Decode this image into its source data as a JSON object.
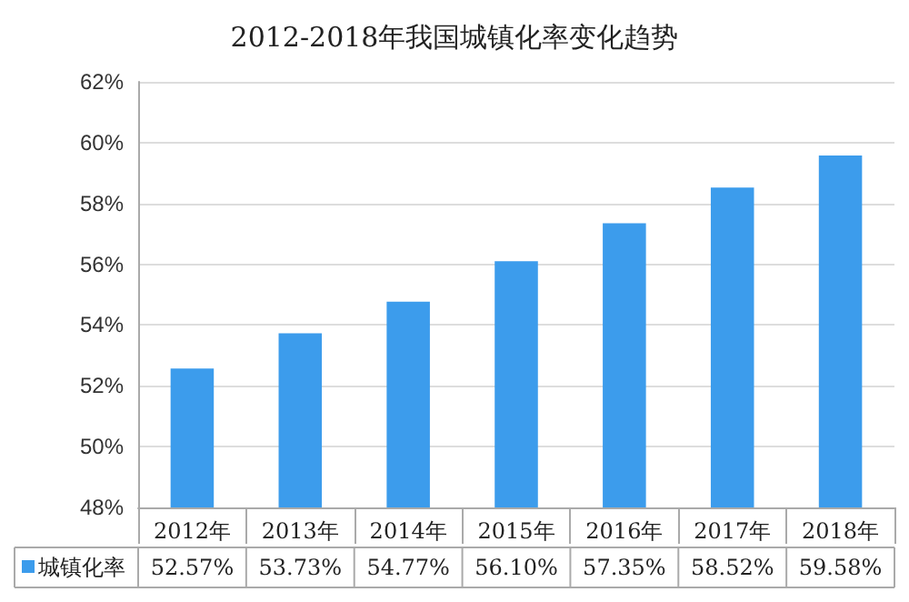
{
  "chart_data": {
    "type": "bar",
    "title": "2012-2018年我国城镇化率变化趋势",
    "categories": [
      "2012年",
      "2013年",
      "2014年",
      "2015年",
      "2016年",
      "2017年",
      "2018年"
    ],
    "series": [
      {
        "name": "城镇化率",
        "color": "#3c9cec",
        "values": [
          52.57,
          53.73,
          54.77,
          56.1,
          57.35,
          58.52,
          59.58
        ],
        "value_labels": [
          "52.57%",
          "53.73%",
          "54.77%",
          "56.10%",
          "57.35%",
          "58.52%",
          "59.58%"
        ]
      }
    ],
    "ylim": [
      48,
      62
    ],
    "yticks": [
      {
        "value": 48,
        "label": "48%"
      },
      {
        "value": 50,
        "label": "50%"
      },
      {
        "value": 52,
        "label": "52%"
      },
      {
        "value": 54,
        "label": "54%"
      },
      {
        "value": 56,
        "label": "56%"
      },
      {
        "value": 58,
        "label": "58%"
      },
      {
        "value": 60,
        "label": "60%"
      },
      {
        "value": 62,
        "label": "62%"
      }
    ],
    "grid": "y",
    "legend": "bottom left"
  }
}
